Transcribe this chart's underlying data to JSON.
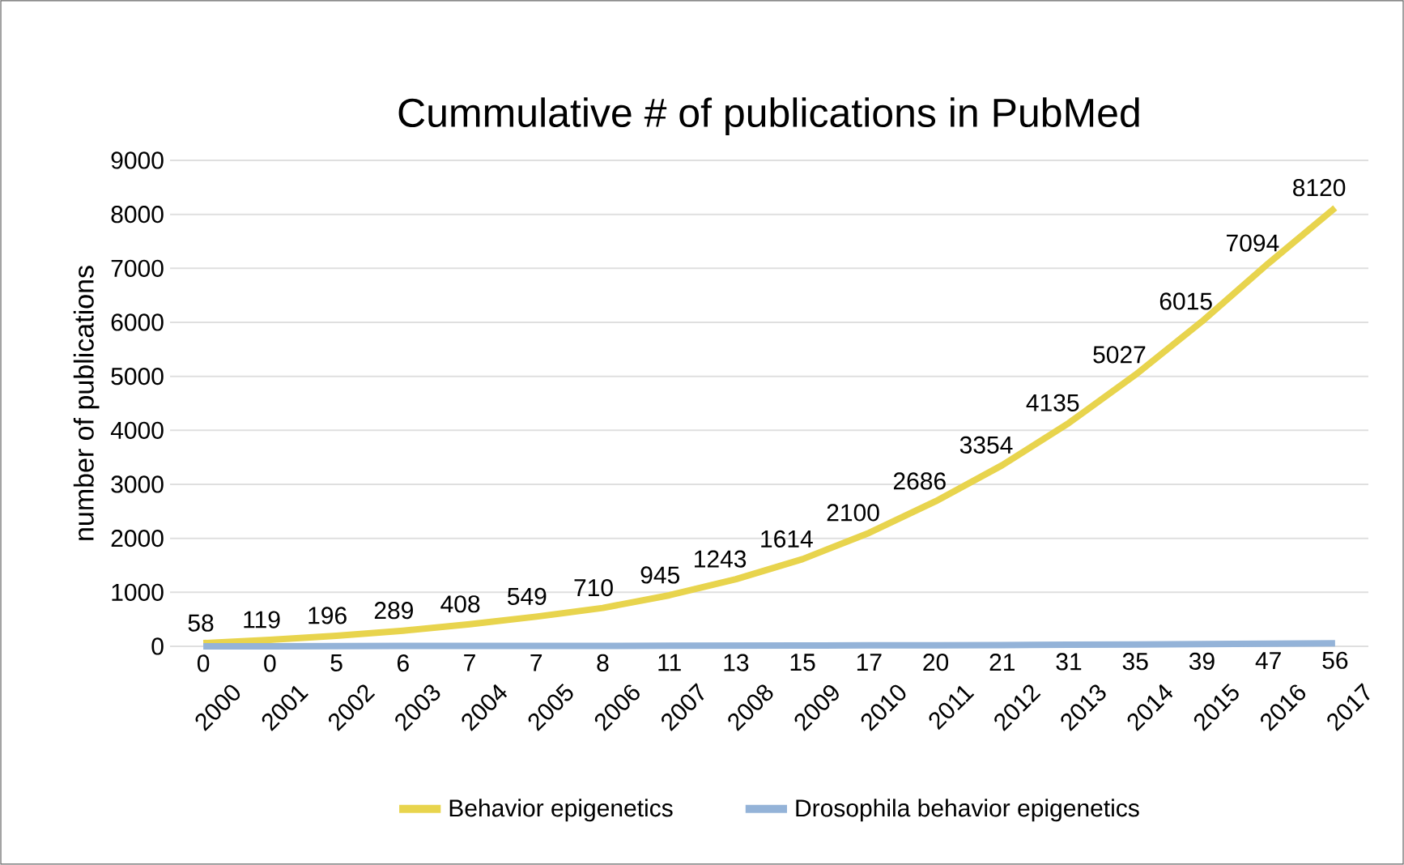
{
  "chart_data": {
    "type": "line",
    "title": "Cummulative # of publications in PubMed",
    "ylabel": "number of publications",
    "categories": [
      "2000",
      "2001",
      "2002",
      "2003",
      "2004",
      "2005",
      "2006",
      "2007",
      "2008",
      "2009",
      "2010",
      "2011",
      "2012",
      "2013",
      "2014",
      "2015",
      "2016",
      "2017"
    ],
    "series": [
      {
        "name": "Behavior epigenetics",
        "color": "#e8d44d",
        "values": [
          58,
          119,
          196,
          289,
          408,
          549,
          710,
          945,
          1243,
          1614,
          2100,
          2686,
          3354,
          4135,
          5027,
          6015,
          7094,
          8120
        ]
      },
      {
        "name": "Drosophila behavior epigenetics",
        "color": "#94b3d8",
        "values": [
          0,
          0,
          5,
          6,
          7,
          7,
          8,
          11,
          13,
          15,
          17,
          20,
          21,
          31,
          35,
          39,
          47,
          56
        ]
      }
    ],
    "ylim": [
      0,
      9000
    ],
    "yticks": [
      0,
      1000,
      2000,
      3000,
      4000,
      5000,
      6000,
      7000,
      8000,
      9000
    ],
    "grid": "y",
    "legend": "bottom",
    "data_labels": true,
    "marker": "none",
    "line_style": "solid"
  }
}
